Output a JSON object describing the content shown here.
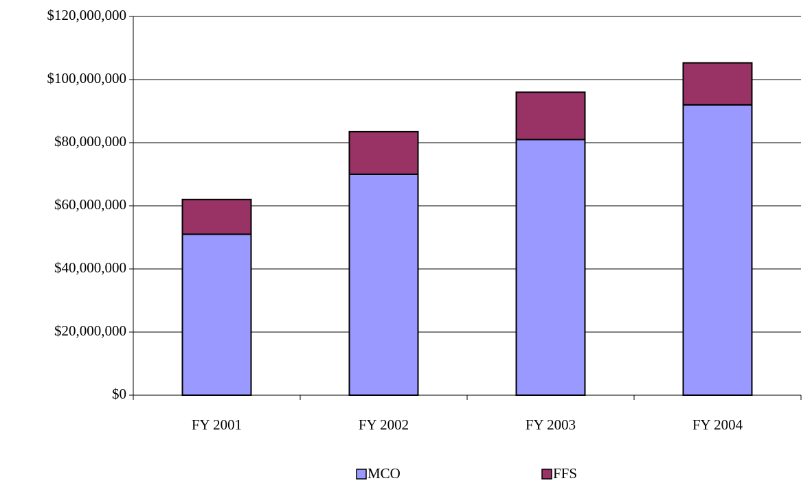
{
  "chart_data": {
    "type": "stacked_bar",
    "categories": [
      "FY 2001",
      "FY 2002",
      "FY 2003",
      "FY 2004"
    ],
    "series": [
      {
        "name": "MCO",
        "color": "#9999ff",
        "values": [
          51000000,
          70000000,
          81000000,
          92000000
        ]
      },
      {
        "name": "FFS",
        "color": "#993366",
        "values": [
          11000000,
          13500000,
          15000000,
          13300000
        ]
      }
    ],
    "ylim": [
      0,
      120000000
    ],
    "yticks": [
      {
        "value": 0,
        "label": "$0"
      },
      {
        "value": 20000000,
        "label": "$20,000,000"
      },
      {
        "value": 40000000,
        "label": "$40,000,000"
      },
      {
        "value": 60000000,
        "label": "$60,000,000"
      },
      {
        "value": 80000000,
        "label": "$80,000,000"
      },
      {
        "value": 100000000,
        "label": "$100,000,000"
      },
      {
        "value": 120000000,
        "label": "$120,000,000"
      }
    ],
    "grid": true,
    "legend": "bottom"
  }
}
